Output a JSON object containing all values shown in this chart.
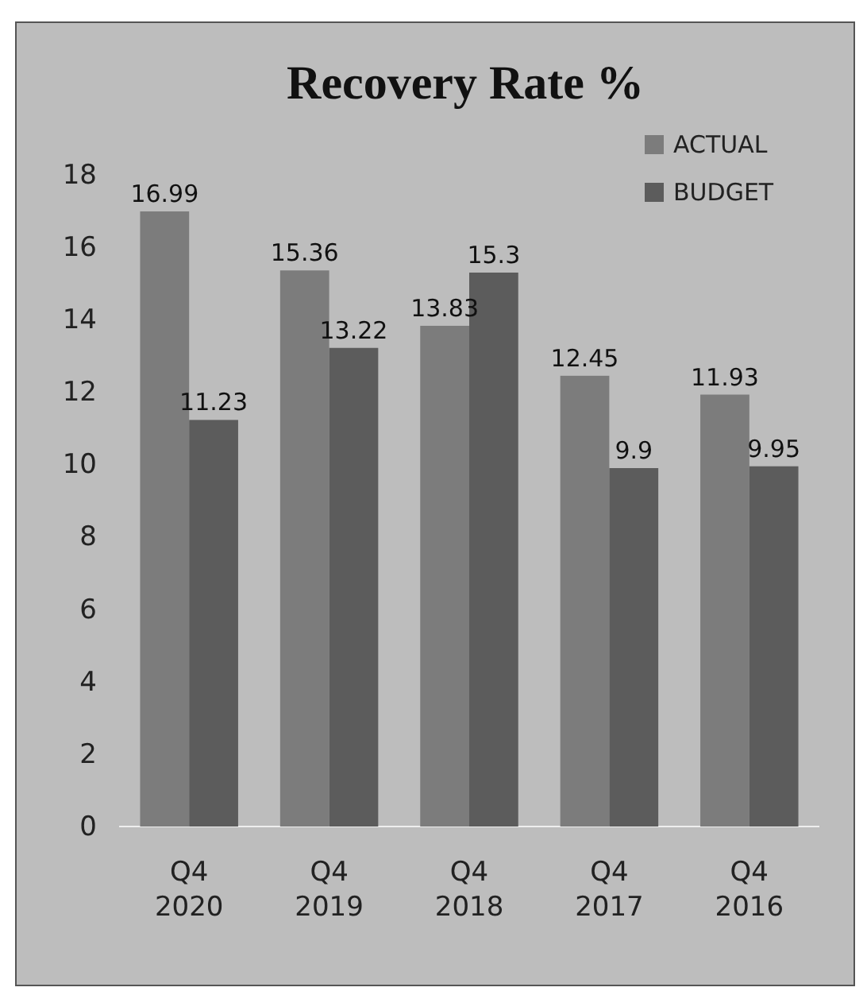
{
  "chart_data": {
    "type": "bar",
    "title": "Recovery Rate %",
    "categories": [
      "Q4 2020",
      "Q4 2019",
      "Q4 2018",
      "Q4 2017",
      "Q4 2016"
    ],
    "series": [
      {
        "name": "ACTUAL",
        "color": "#7c7c7c",
        "values": [
          16.99,
          15.36,
          13.83,
          12.45,
          11.93
        ]
      },
      {
        "name": "BUDGET",
        "color": "#5c5c5c",
        "values": [
          11.23,
          13.22,
          15.3,
          9.9,
          9.95
        ]
      }
    ],
    "ylim": [
      0,
      18
    ],
    "yticks": [
      0,
      2,
      4,
      6,
      8,
      10,
      12,
      14,
      16,
      18
    ],
    "data_labels": true,
    "legend": "top right"
  }
}
